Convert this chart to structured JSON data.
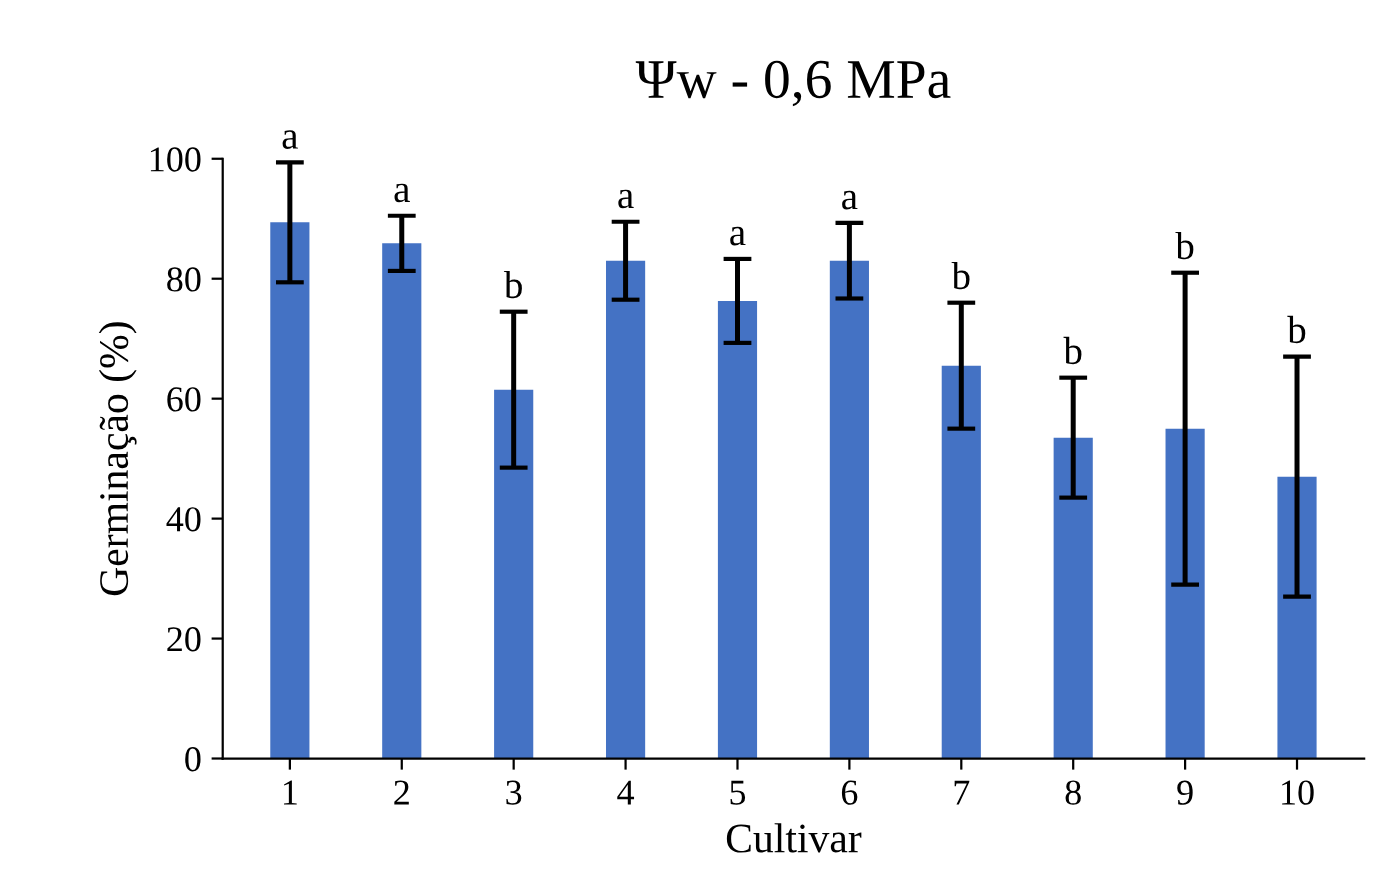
{
  "chart_data": {
    "type": "bar",
    "title": "Ψw - 0,6 MPa",
    "xlabel": "Cultivar",
    "ylabel": "Germinação (%)",
    "categories": [
      "1",
      "2",
      "3",
      "4",
      "5",
      "6",
      "7",
      "8",
      "9",
      "10"
    ],
    "values": [
      89.4,
      85.9,
      61.5,
      83,
      76.3,
      83,
      65.5,
      53.5,
      55,
      47
    ],
    "errors": [
      10,
      4.6,
      13,
      6.5,
      7,
      6.3,
      10.5,
      10,
      26,
      20
    ],
    "color": "#4472c4",
    "ylim": [
      0,
      100
    ],
    "yticks": [
      0,
      20,
      40,
      60,
      80,
      100
    ],
    "grid": false,
    "legend": false,
    "annotations": [
      {
        "text": "a",
        "x": "1",
        "y": 99.4
      },
      {
        "text": "a",
        "x": "2",
        "y": 90.5
      },
      {
        "text": "b",
        "x": "3",
        "y": 74.5
      },
      {
        "text": "a",
        "x": "4",
        "y": 89.5
      },
      {
        "text": "a",
        "x": "5",
        "y": 83.3
      },
      {
        "text": "a",
        "x": "6",
        "y": 89.3
      },
      {
        "text": "b",
        "x": "7",
        "y": 76
      },
      {
        "text": "b",
        "x": "8",
        "y": 63.5
      },
      {
        "text": "b",
        "x": "9",
        "y": 81
      },
      {
        "text": "b",
        "x": "10",
        "y": 67
      }
    ]
  }
}
